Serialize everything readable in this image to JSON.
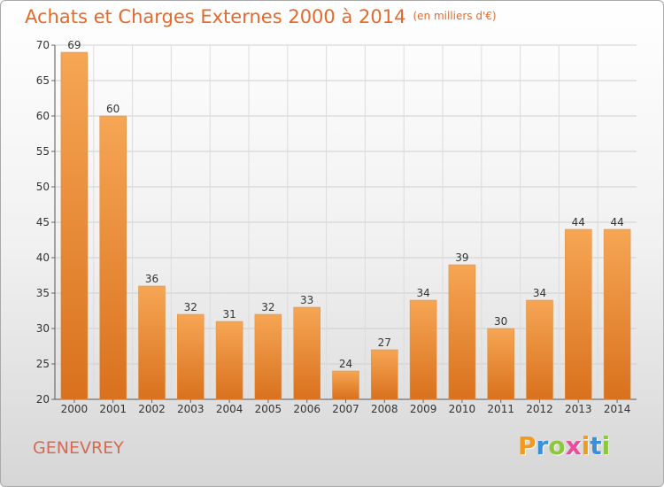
{
  "chart_data": {
    "type": "bar",
    "title": "Achats et Charges Externes 2000 à 2014",
    "subtitle": "(en milliers d'€)",
    "categories": [
      "2000",
      "2001",
      "2002",
      "2003",
      "2004",
      "2005",
      "2006",
      "2007",
      "2008",
      "2009",
      "2010",
      "2011",
      "2012",
      "2013",
      "2014"
    ],
    "values": [
      69,
      60,
      36,
      32,
      31,
      32,
      33,
      24,
      27,
      34,
      39,
      30,
      34,
      44,
      44
    ],
    "ylim": [
      20,
      70
    ],
    "yticks": [
      20,
      25,
      30,
      35,
      40,
      45,
      50,
      55,
      60,
      65,
      70
    ],
    "grid": true,
    "bar_color": "#f0913a"
  },
  "footer": {
    "place": "GENEVREY",
    "brand_letters": [
      "P",
      "r",
      "o",
      "x",
      "i",
      "t",
      "i"
    ],
    "brand_colors": [
      "#f39a1e",
      "#3a8fd6",
      "#8dc63f",
      "#e94e9b",
      "#f39a1e",
      "#3a8fd6",
      "#8dc63f"
    ]
  }
}
